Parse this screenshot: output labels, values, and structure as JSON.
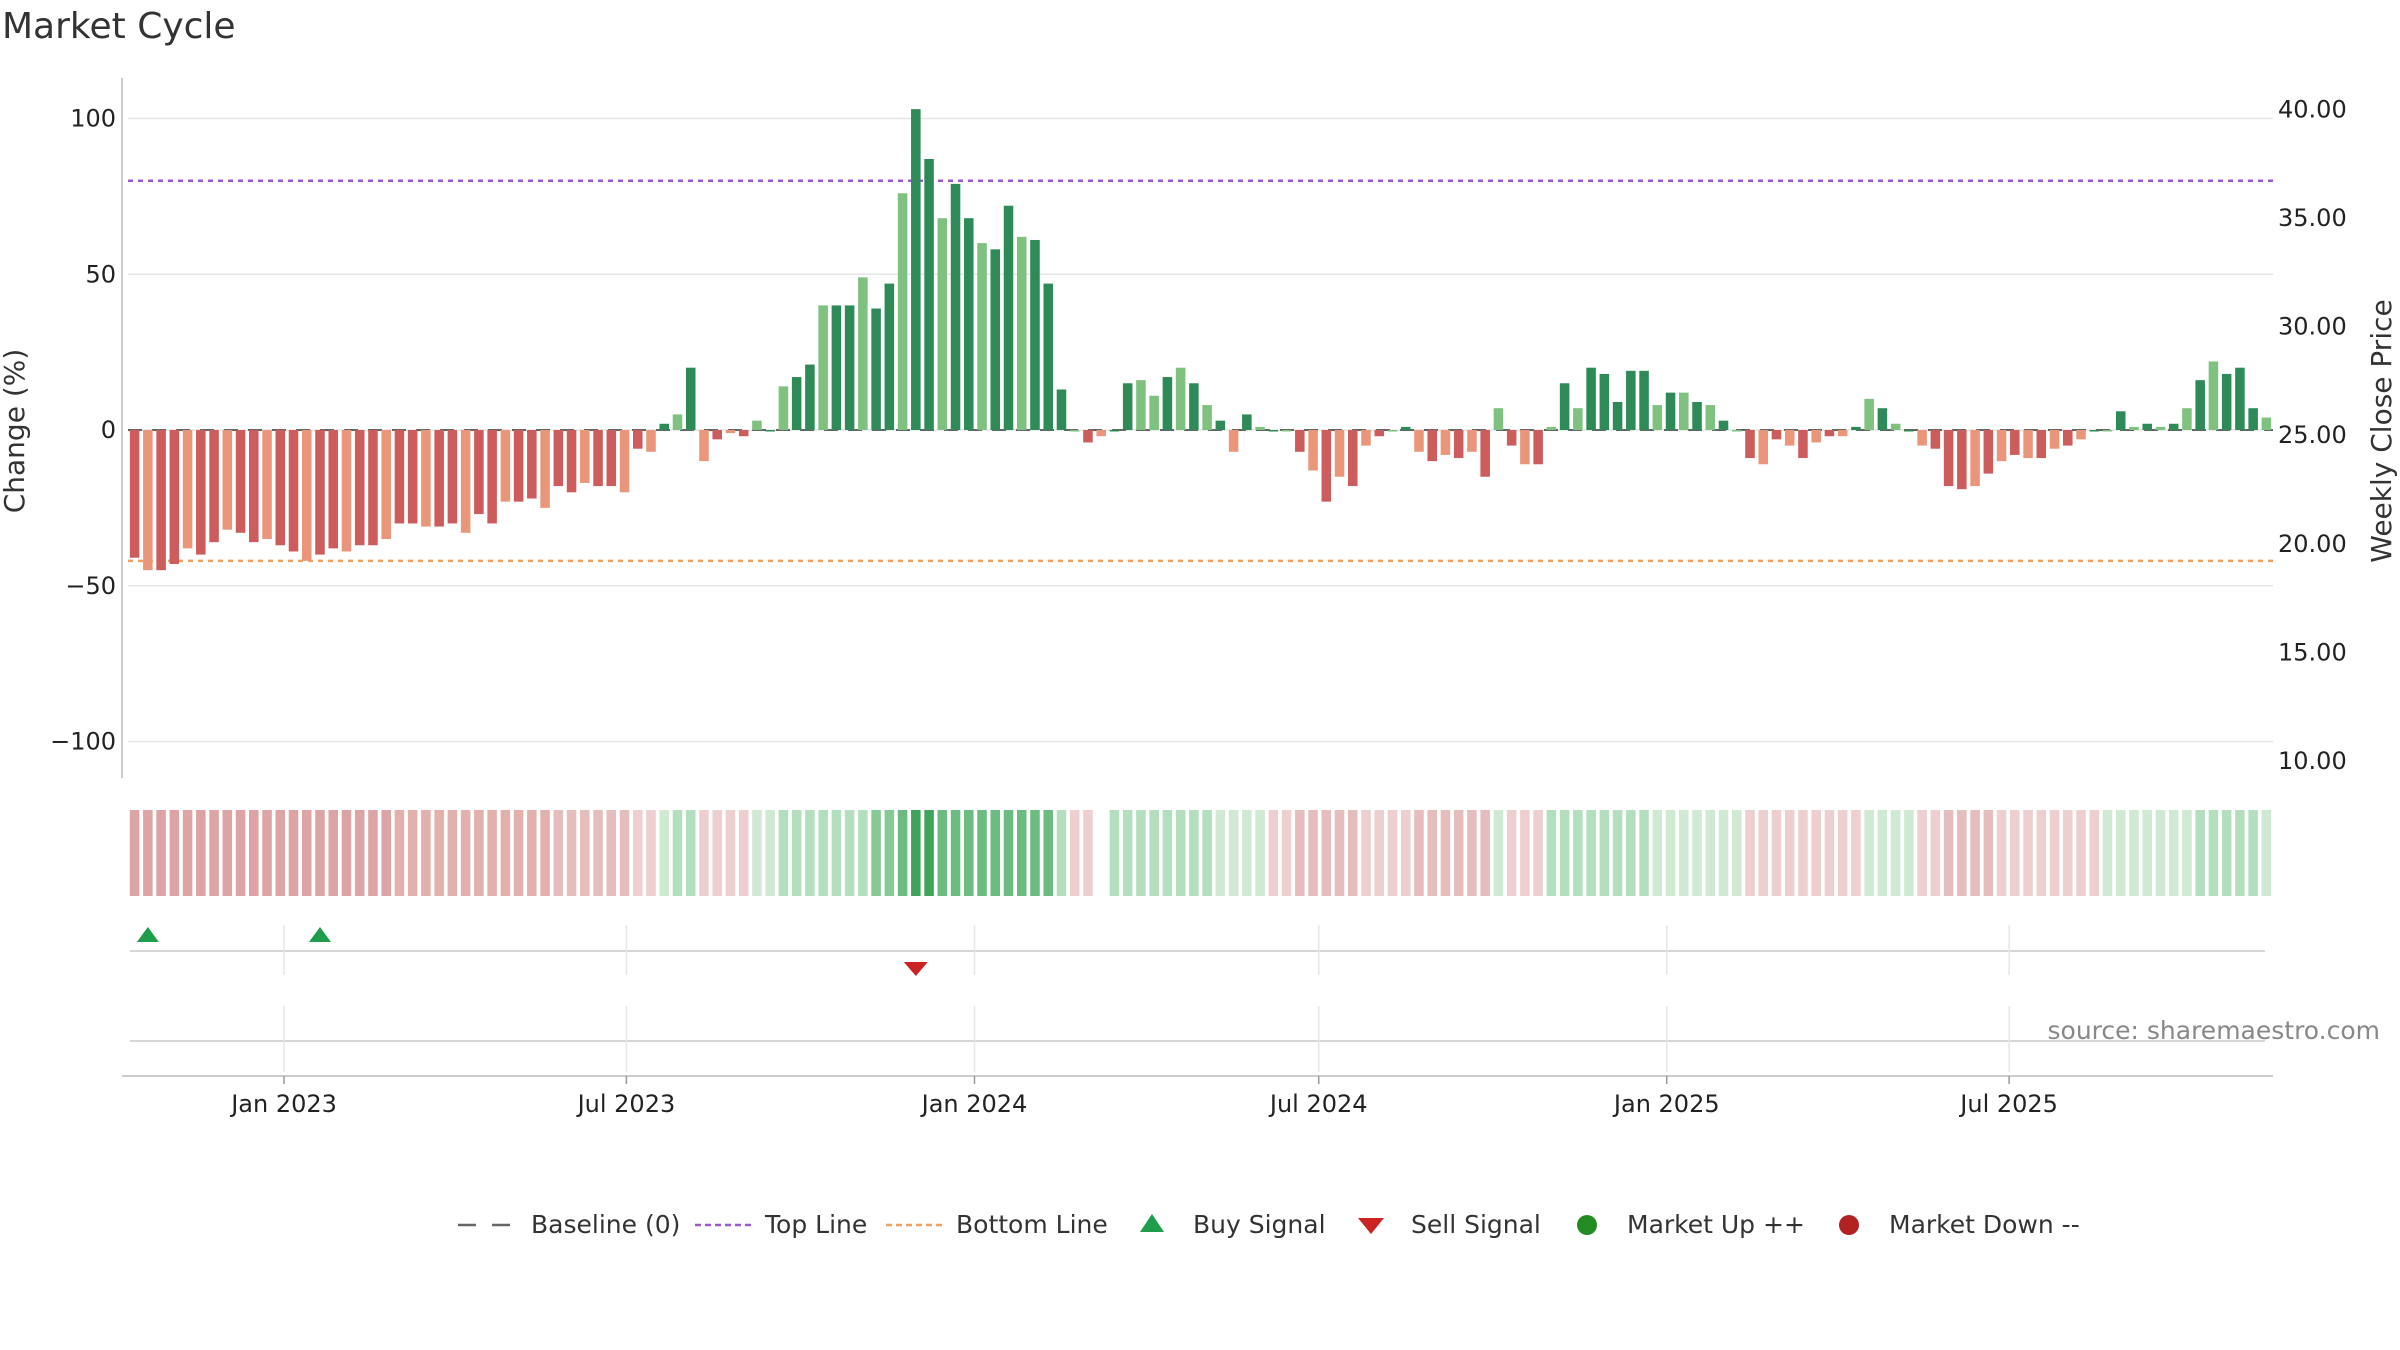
{
  "chart_data": {
    "type": "bar",
    "title": "Market Cycle",
    "ylabel": "Change (%)",
    "y2label": "Weekly Close Price",
    "ylim": [
      -112,
      112
    ],
    "y2lim": [
      10,
      40
    ],
    "yticks": [
      100,
      50,
      0,
      -50,
      -100
    ],
    "yticklabels": [
      "100",
      "50",
      "0",
      "−50",
      "−100"
    ],
    "y2ticks": [
      40,
      35,
      30,
      25,
      20,
      15,
      10
    ],
    "y2ticklabels": [
      "40.00",
      "35.00",
      "30.00",
      "25.00",
      "20.00",
      "15.00",
      "10.00"
    ],
    "start_date": "2022-10-14",
    "x_date_ticks": [
      "2023-01-01",
      "2023-07-01",
      "2024-01-01",
      "2024-07-01",
      "2025-01-01",
      "2025-07-01"
    ],
    "xticklabels": [
      "Jan 2023",
      "Jul 2023",
      "Jan 2024",
      "Jul 2024",
      "Jan 2025",
      "Jul 2025"
    ],
    "reference_lines": {
      "baseline": 0,
      "top": 80,
      "bottom": -42
    },
    "weekly_change": [
      -41,
      -45,
      -45,
      -43,
      -38,
      -40,
      -36,
      -32,
      -33,
      -36,
      -35,
      -37,
      -39,
      -42,
      -40,
      -38,
      -39,
      -37,
      -37,
      -35,
      -30,
      -30,
      -31,
      -31,
      -30,
      -33,
      -27,
      -30,
      -23,
      -23,
      -22,
      -25,
      -18,
      -20,
      -17,
      -18,
      -18,
      -20,
      -6,
      -7,
      2,
      5,
      20,
      -10,
      -3,
      -1,
      -2,
      3,
      0,
      14,
      17,
      21,
      40,
      40,
      40,
      49,
      39,
      47,
      76,
      103,
      87,
      68,
      79,
      68,
      60,
      58,
      72,
      62,
      61,
      47,
      13,
      0,
      -4,
      -2,
      0,
      15,
      16,
      11,
      17,
      20,
      15,
      8,
      3,
      -7,
      5,
      1,
      0,
      0,
      -7,
      -13,
      -23,
      -15,
      -18,
      -5,
      -2,
      0,
      1,
      -7,
      -10,
      -8,
      -9,
      -7,
      -15,
      7,
      -5,
      -11,
      -11,
      1,
      15,
      7,
      20,
      18,
      9,
      19,
      19,
      8,
      12,
      12,
      9,
      8,
      3,
      0,
      -9,
      -11,
      -3,
      -5,
      -9,
      -4,
      -2,
      -2,
      1,
      10,
      7,
      2,
      0,
      -5,
      -6,
      -18,
      -19,
      -18,
      -14,
      -10,
      -8,
      -9,
      -9,
      -6,
      -5,
      -3,
      0,
      0,
      6,
      1,
      2,
      1,
      2,
      7,
      16,
      22,
      18,
      20,
      7,
      4
    ],
    "cycle_strength": [
      -4,
      -4,
      -4,
      -4,
      -4,
      -4,
      -4,
      -4,
      -4,
      -4,
      -4,
      -4,
      -4,
      -4,
      -4,
      -4,
      -4,
      -4,
      -4,
      -4,
      -3,
      -3,
      -3,
      -3,
      -3,
      -3,
      -3,
      -3,
      -3,
      -3,
      -3,
      -3,
      -2,
      -2,
      -2,
      -2,
      -2,
      -2,
      -1,
      -1,
      1,
      2,
      2,
      -1,
      -1,
      -1,
      -1,
      1,
      1,
      2,
      2,
      2,
      2,
      2,
      2,
      2,
      3,
      3,
      4,
      5,
      5,
      4,
      4,
      4,
      4,
      4,
      4,
      4,
      4,
      4,
      2,
      -1,
      -1,
      null,
      2,
      2,
      2,
      2,
      2,
      2,
      2,
      2,
      1,
      1,
      1,
      1,
      -1,
      -1,
      -2,
      -2,
      -2,
      -2,
      -2,
      -1,
      -1,
      -1,
      -1,
      -2,
      -2,
      -2,
      -2,
      -2,
      -2,
      1,
      -1,
      -1,
      -1,
      2,
      2,
      2,
      2,
      2,
      2,
      2,
      2,
      1,
      1,
      1,
      1,
      1,
      1,
      1,
      -1,
      -1,
      -1,
      -1,
      -1,
      -1,
      -1,
      -1,
      -1,
      1,
      1,
      1,
      1,
      -1,
      -1,
      -2,
      -2,
      -2,
      -2,
      -1,
      -1,
      -1,
      -1,
      -1,
      -1,
      -1,
      -1,
      1,
      1,
      1,
      1,
      1,
      1,
      1,
      2,
      2,
      2,
      2,
      2,
      1
    ],
    "buy_signal_weeks": [
      1,
      14
    ],
    "sell_signal_weeks": [
      59
    ],
    "source": "source: sharemaestro.com",
    "legend": [
      "Baseline (0)",
      "Top Line",
      "Bottom Line",
      "Buy Signal",
      "Sell Signal",
      "Market Up ++",
      "Market Down --"
    ]
  },
  "colors": {
    "up_dark": "#2e8b57",
    "up_light": "#7fc17f",
    "down_dark": "#cd5c5c",
    "down_light": "#e9967a",
    "top_line": "#9b59d0",
    "bottom_line": "#f0a060",
    "baseline": "#666666",
    "buy": "#1e9e4a",
    "sell": "#cc2222",
    "market_up": "#228b22",
    "market_down": "#b22222",
    "grid": "#e6e6e6"
  }
}
